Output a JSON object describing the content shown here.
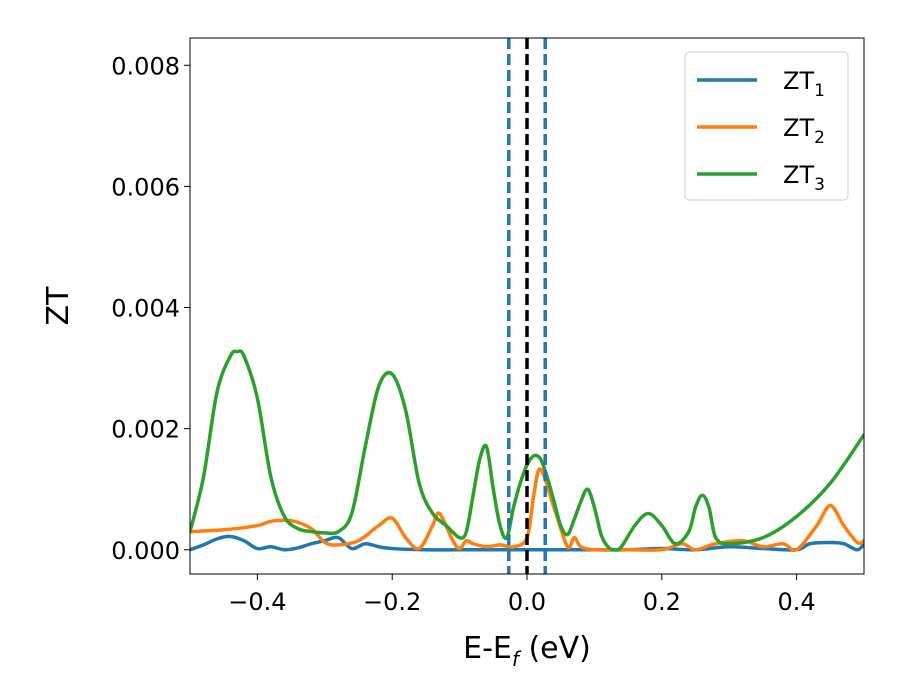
{
  "chart_data": {
    "type": "line",
    "xlabel": "E-E",
    "xlabel_sub": "f",
    "xlabel_unit": " (eV)",
    "ylabel": "ZT",
    "xlim": [
      -0.5,
      0.5
    ],
    "ylim": [
      -0.0004,
      0.00845
    ],
    "xticks": [
      -0.4,
      -0.2,
      0.0,
      0.2,
      0.4
    ],
    "xtick_labels": [
      "−0.4",
      "−0.2",
      "0.0",
      "0.2",
      "0.4"
    ],
    "yticks": [
      0.0,
      0.002,
      0.004,
      0.006,
      0.008
    ],
    "ytick_labels": [
      "0.000",
      "0.002",
      "0.004",
      "0.006",
      "0.008"
    ],
    "legend_position": "top-right",
    "grid": false,
    "vlines": [
      {
        "x": 0.0,
        "color": "#000000",
        "style": "dashed"
      },
      {
        "x": -0.027,
        "color": "#1f77b4",
        "style": "dashed"
      },
      {
        "x": 0.027,
        "color": "#1f77b4",
        "style": "dashed"
      }
    ],
    "series": [
      {
        "name": "ZT",
        "subscript": "1",
        "color": "#1f77b4",
        "x": [
          -0.5,
          -0.48,
          -0.46,
          -0.44,
          -0.42,
          -0.4,
          -0.38,
          -0.36,
          -0.34,
          -0.32,
          -0.3,
          -0.28,
          -0.26,
          -0.24,
          -0.22,
          -0.2,
          -0.15,
          -0.1,
          -0.05,
          0.0,
          0.05,
          0.1,
          0.15,
          0.2,
          0.25,
          0.3,
          0.35,
          0.4,
          0.42,
          0.45,
          0.47,
          0.49,
          0.5
        ],
        "y": [
          0.0,
          8e-05,
          0.00018,
          0.00022,
          0.00015,
          2e-05,
          5e-05,
          0.0,
          3e-05,
          0.0001,
          0.00015,
          0.0002,
          2e-05,
          0.0001,
          5e-05,
          2e-05,
          0.0,
          0.0,
          0.0,
          0.0,
          0.0,
          0.0,
          0.0,
          2e-05,
          0.0,
          5e-05,
          2e-05,
          0.0,
          0.0001,
          0.00012,
          0.0001,
          0.0,
          0.0001
        ]
      },
      {
        "name": "ZT",
        "subscript": "2",
        "color": "#ff7f0e",
        "x": [
          -0.5,
          -0.45,
          -0.4,
          -0.38,
          -0.35,
          -0.32,
          -0.3,
          -0.28,
          -0.25,
          -0.22,
          -0.2,
          -0.18,
          -0.16,
          -0.14,
          -0.13,
          -0.11,
          -0.1,
          -0.09,
          -0.08,
          -0.06,
          -0.04,
          -0.02,
          0.0,
          0.01,
          0.02,
          0.04,
          0.06,
          0.07,
          0.08,
          0.1,
          0.15,
          0.2,
          0.23,
          0.25,
          0.28,
          0.32,
          0.35,
          0.38,
          0.4,
          0.43,
          0.45,
          0.47,
          0.49,
          0.5
        ],
        "y": [
          0.0003,
          0.00033,
          0.0004,
          0.00047,
          0.00048,
          0.00035,
          0.00012,
          8e-05,
          0.00015,
          0.0004,
          0.00052,
          0.0002,
          2e-05,
          0.0004,
          0.0006,
          0.00015,
          2e-05,
          0.00015,
          0.0001,
          5e-05,
          8e-05,
          5e-05,
          0.0002,
          0.0009,
          0.00133,
          0.0007,
          5e-05,
          0.0002,
          5e-05,
          0.0,
          0.0,
          0.0,
          0.0001,
          0.0,
          0.0001,
          0.00015,
          5e-05,
          0.0001,
          0.0,
          0.0004,
          0.00073,
          0.0004,
          0.00012,
          0.00015
        ]
      },
      {
        "name": "ZT",
        "subscript": "3",
        "color": "#2ca02c",
        "x": [
          -0.5,
          -0.48,
          -0.46,
          -0.44,
          -0.43,
          -0.42,
          -0.4,
          -0.38,
          -0.36,
          -0.34,
          -0.32,
          -0.3,
          -0.28,
          -0.26,
          -0.24,
          -0.22,
          -0.2,
          -0.18,
          -0.16,
          -0.14,
          -0.12,
          -0.1,
          -0.09,
          -0.08,
          -0.07,
          -0.06,
          -0.05,
          -0.04,
          -0.03,
          -0.02,
          -0.01,
          0.0,
          0.01,
          0.02,
          0.03,
          0.04,
          0.05,
          0.06,
          0.07,
          0.08,
          0.09,
          0.1,
          0.11,
          0.12,
          0.13,
          0.14,
          0.16,
          0.18,
          0.2,
          0.22,
          0.24,
          0.25,
          0.26,
          0.27,
          0.28,
          0.3,
          0.35,
          0.4,
          0.45,
          0.5
        ],
        "y": [
          0.0003,
          0.0012,
          0.0026,
          0.0032,
          0.00327,
          0.0032,
          0.0025,
          0.0012,
          0.00055,
          0.00035,
          0.0003,
          0.00028,
          0.0003,
          0.0006,
          0.0017,
          0.0027,
          0.0029,
          0.0023,
          0.0011,
          0.0006,
          0.0004,
          0.0002,
          0.0003,
          0.0009,
          0.0015,
          0.0017,
          0.001,
          0.0004,
          0.0002,
          0.0007,
          0.0011,
          0.0014,
          0.00155,
          0.0015,
          0.0012,
          0.0008,
          0.0004,
          0.00025,
          0.0005,
          0.0008,
          0.001,
          0.0007,
          0.00025,
          5e-05,
          0.0,
          5e-05,
          0.0004,
          0.0006,
          0.0004,
          0.0001,
          0.0003,
          0.0007,
          0.0009,
          0.0007,
          0.0002,
          0.0001,
          0.0002,
          0.00055,
          0.0011,
          0.0019
        ]
      }
    ]
  }
}
